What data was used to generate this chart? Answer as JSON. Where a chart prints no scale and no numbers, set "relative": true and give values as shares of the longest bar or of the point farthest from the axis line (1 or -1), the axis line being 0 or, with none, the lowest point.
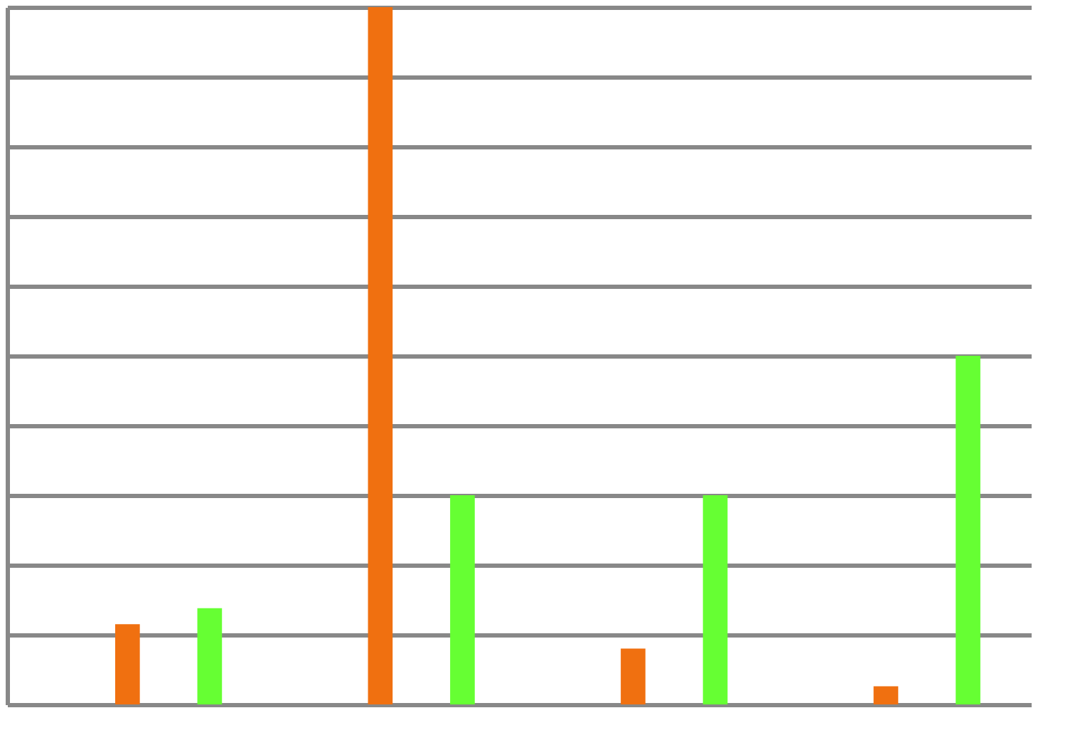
{
  "chart_data": {
    "type": "bar",
    "relative": true,
    "categories": [
      null,
      null,
      null,
      null
    ],
    "grid": "y",
    "legend": false,
    "series": [
      {
        "color": "#f07010",
        "values": [
          0.115,
          1,
          0.08,
          0.026
        ]
      },
      {
        "color": "#66ff33",
        "values": [
          0.138,
          0.3,
          0.3,
          0.5
        ]
      }
    ]
  }
}
